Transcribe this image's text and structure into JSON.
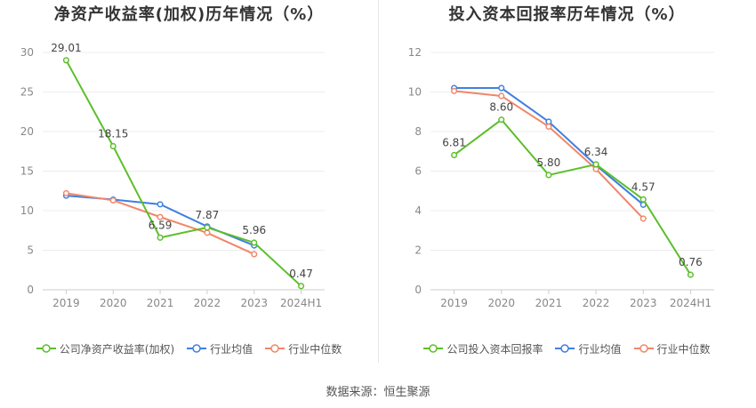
{
  "source": "数据来源：恒生聚源",
  "chart_data": [
    {
      "type": "line",
      "title": "净资产收益率(加权)历年情况（%）",
      "categories": [
        "2019",
        "2020",
        "2021",
        "2022",
        "2023",
        "2024H1"
      ],
      "ylim": [
        0,
        30
      ],
      "yticks": [
        0,
        5,
        10,
        15,
        20,
        25,
        30
      ],
      "grid": true,
      "legend_position": "bottom",
      "series": [
        {
          "name": "公司净资产收益率(加权)",
          "color": "#5cbf2a",
          "values": [
            29.01,
            18.15,
            6.59,
            7.87,
            5.96,
            0.47
          ],
          "labels": [
            "29.01",
            "18.15",
            "6.59",
            "7.87",
            "5.96",
            "0.47"
          ]
        },
        {
          "name": "行业均值",
          "color": "#3f7fe0",
          "values": [
            11.9,
            11.4,
            10.8,
            8.0,
            5.6,
            null
          ]
        },
        {
          "name": "行业中位数",
          "color": "#f0876a",
          "values": [
            12.2,
            11.3,
            9.2,
            7.2,
            4.5,
            null
          ]
        }
      ]
    },
    {
      "type": "line",
      "title": "投入资本回报率历年情况（%）",
      "categories": [
        "2019",
        "2020",
        "2021",
        "2022",
        "2023",
        "2024H1"
      ],
      "ylim": [
        0,
        12
      ],
      "yticks": [
        0,
        2,
        4,
        6,
        8,
        10,
        12
      ],
      "grid": true,
      "legend_position": "bottom",
      "series": [
        {
          "name": "公司投入资本回报率",
          "color": "#5cbf2a",
          "values": [
            6.81,
            8.6,
            5.8,
            6.34,
            4.57,
            0.76
          ],
          "labels": [
            "6.81",
            "8.60",
            "5.80",
            "6.34",
            "4.57",
            "0.76"
          ]
        },
        {
          "name": "行业均值",
          "color": "#3f7fe0",
          "values": [
            10.2,
            10.2,
            8.5,
            6.3,
            4.3,
            null
          ]
        },
        {
          "name": "行业中位数",
          "color": "#f0876a",
          "values": [
            10.05,
            9.8,
            8.25,
            6.1,
            3.6,
            null
          ]
        }
      ]
    }
  ]
}
